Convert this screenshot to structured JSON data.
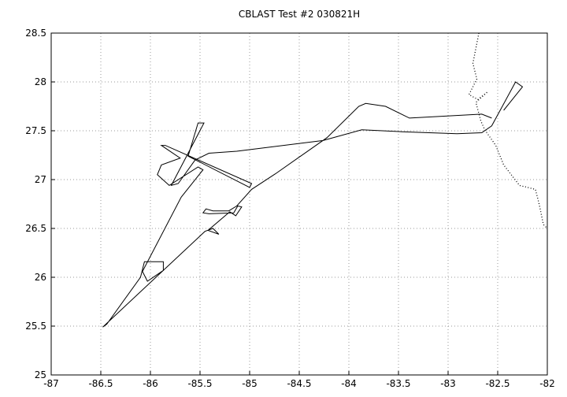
{
  "chart_data": {
    "type": "line",
    "title": "CBLAST Test #2 030821H",
    "xlim": [
      -87,
      -82
    ],
    "xticks": [
      -87,
      -86.5,
      -86,
      -85.5,
      -85,
      -84.5,
      -84,
      -83.5,
      -83,
      -82.5,
      -82
    ],
    "ylim": [
      25,
      28.5
    ],
    "yticks": [
      25,
      25.5,
      26,
      26.5,
      27,
      27.5,
      28,
      28.5
    ],
    "grid": true,
    "series": [
      {
        "color": "#000000",
        "line_style": "solid",
        "x": [
          -82.56,
          -82.66,
          -83.39,
          -83.63,
          -83.83,
          -83.9,
          -84.22,
          -84.74,
          -84.98,
          -85.13,
          -85.21,
          -85.37,
          -85.44,
          -85.47,
          -85.41,
          -85.16,
          -85.12,
          -85.08,
          -85.14,
          -85.2,
          -85.42,
          -85.31,
          -85.37,
          -85.45,
          -86.48,
          -86.44,
          -86.1,
          -86.06,
          -85.87,
          -85.87,
          -86.03,
          -86.08,
          -85.69,
          -85.47,
          -85.52,
          -85.81,
          -85.93,
          -85.89,
          -85.7,
          -85.89,
          -85.85,
          -84.98,
          -85.0,
          -85.62,
          -85.52,
          -85.46,
          -85.79,
          -85.72,
          -85.55,
          -85.41,
          -85.13,
          -84.26,
          -83.87,
          -83.47,
          -82.91,
          -82.66,
          -82.56,
          -82.32,
          -82.25,
          -82.44
        ],
        "values": [
          27.63,
          27.67,
          27.63,
          27.75,
          27.78,
          27.75,
          27.43,
          27.06,
          26.9,
          26.73,
          26.68,
          26.68,
          26.7,
          26.66,
          26.65,
          26.66,
          26.73,
          26.72,
          26.63,
          26.67,
          26.48,
          26.44,
          26.5,
          26.47,
          25.49,
          25.52,
          26.0,
          26.16,
          26.16,
          26.07,
          25.96,
          26.06,
          26.82,
          27.1,
          27.13,
          26.94,
          27.05,
          27.15,
          27.22,
          27.35,
          27.35,
          26.96,
          26.92,
          27.24,
          27.58,
          27.58,
          26.94,
          26.96,
          27.2,
          27.27,
          27.29,
          27.4,
          27.51,
          27.49,
          27.47,
          27.48,
          27.55,
          28.0,
          27.95,
          27.71
        ]
      },
      {
        "color": "#000000",
        "line_style": "dotted",
        "x": [
          -82.69,
          -82.75,
          -82.71,
          -82.79,
          -82.7,
          -82.6,
          -82.72,
          -82.67,
          -82.63,
          -82.52,
          -82.44,
          -82.28,
          -82.12,
          -82.08,
          -82.04,
          -82.0
        ],
        "values": [
          28.5,
          28.19,
          28.03,
          27.87,
          27.82,
          27.9,
          27.79,
          27.6,
          27.51,
          27.35,
          27.15,
          26.94,
          26.9,
          26.74,
          26.54,
          26.5
        ]
      }
    ]
  }
}
